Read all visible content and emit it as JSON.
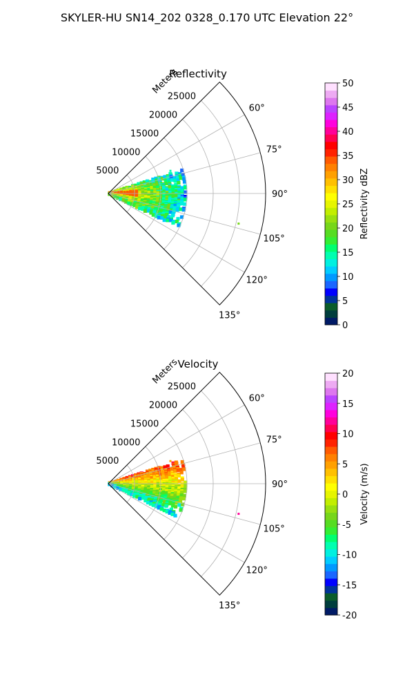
{
  "figure_title": "SKYLER-HU  SN14_202  0328_0.170 UTC Elevation 22°",
  "chart_data": [
    {
      "type": "heatmap",
      "projection": "polar-sector",
      "title": "Reflectivity",
      "theta_range_deg": [
        45,
        135
      ],
      "theta_ticks": [
        "60°",
        "75°",
        "90°",
        "105°",
        "120°",
        "135°"
      ],
      "r_label": "Meters",
      "r_max": 30000,
      "r_ticks": [
        "5000",
        "10000",
        "15000",
        "20000",
        "25000"
      ],
      "grid": true,
      "colorbar": {
        "label": "Reflectivity dBZ",
        "range": [
          0,
          50
        ],
        "ticks": [
          "0",
          "5",
          "10",
          "15",
          "20",
          "25",
          "30",
          "35",
          "40",
          "45",
          "50"
        ],
        "levels": 32,
        "colors": [
          "#001a66",
          "#003d3d",
          "#0a5c2a",
          "#003399",
          "#0000ff",
          "#1a66ff",
          "#0099ff",
          "#00ccff",
          "#00f0e0",
          "#00ffb0",
          "#00ff70",
          "#33ee33",
          "#55dd22",
          "#77d61a",
          "#99e010",
          "#c2ee00",
          "#e6f500",
          "#ffff00",
          "#ffe000",
          "#ffc000",
          "#ffa000",
          "#ff8000",
          "#ff5a00",
          "#ff2200",
          "#ff0000",
          "#ff0050",
          "#ff0099",
          "#ff00dd",
          "#dd22ff",
          "#bb44ff",
          "#dd77ee",
          "#eeaaf3",
          "#ffe0ff"
        ]
      },
      "echo_region": {
        "r_min": 0,
        "r_max": 15000,
        "theta_deg": [
          72,
          116
        ]
      }
    },
    {
      "type": "heatmap",
      "projection": "polar-sector",
      "title": "Velocity",
      "theta_range_deg": [
        45,
        135
      ],
      "theta_ticks": [
        "60°",
        "75°",
        "90°",
        "105°",
        "120°",
        "135°"
      ],
      "r_label": "Meters",
      "r_max": 30000,
      "r_ticks": [
        "5000",
        "10000",
        "15000",
        "20000",
        "25000"
      ],
      "grid": true,
      "colorbar": {
        "label": "Velocity (m/s)",
        "range": [
          -20,
          20
        ],
        "ticks": [
          "-20",
          "-15",
          "-10",
          "-5",
          "0",
          "5",
          "10",
          "15",
          "20"
        ],
        "levels": 32,
        "colors": [
          "#001a66",
          "#003d3d",
          "#0a5c2a",
          "#003399",
          "#0000ff",
          "#1a66ff",
          "#0099ff",
          "#00ccff",
          "#00f0e0",
          "#00ffb0",
          "#00ff70",
          "#33ee33",
          "#55dd22",
          "#77d61a",
          "#99e010",
          "#c2ee00",
          "#e6f500",
          "#ffff00",
          "#ffe000",
          "#ffc000",
          "#ffa000",
          "#ff8000",
          "#ff5a00",
          "#ff2200",
          "#ff0000",
          "#ff0050",
          "#ff0099",
          "#ff00dd",
          "#dd22ff",
          "#bb44ff",
          "#dd77ee",
          "#eeaaf3",
          "#ffe0ff"
        ]
      },
      "echo_region": {
        "r_min": 0,
        "r_max": 15000,
        "theta_deg": [
          72,
          116
        ]
      }
    }
  ]
}
